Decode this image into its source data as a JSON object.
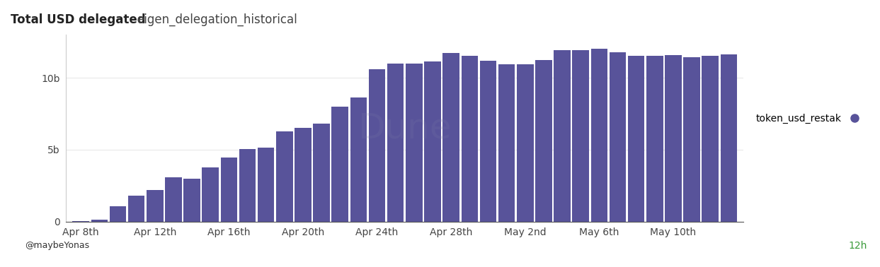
{
  "chart_data": {
    "type": "bar",
    "title": "Total USD delegated",
    "subtitle": "eigen_delegation_historical",
    "categories": [
      "Apr 8th",
      null,
      null,
      null,
      "Apr 12th",
      null,
      null,
      null,
      "Apr 16th",
      null,
      null,
      null,
      "Apr 20th",
      null,
      null,
      null,
      "Apr 24th",
      null,
      null,
      null,
      "Apr 28th",
      null,
      null,
      null,
      "May 2nd",
      null,
      null,
      null,
      "May 6th",
      null,
      null,
      null,
      "May 10th",
      null,
      null,
      null
    ],
    "series": [
      {
        "name": "token_usd_restak",
        "color": "#58539a",
        "values": [
          0.05,
          0.15,
          1.05,
          1.8,
          2.2,
          3.1,
          3.0,
          3.75,
          4.45,
          5.05,
          5.15,
          6.3,
          6.5,
          6.8,
          8.0,
          8.65,
          10.6,
          11.0,
          11.0,
          11.15,
          11.75,
          11.55,
          11.2,
          10.95,
          10.95,
          11.25,
          11.95,
          11.95,
          12.0,
          11.8,
          11.55,
          11.55,
          11.6,
          11.45,
          11.55,
          11.65
        ]
      }
    ],
    "ylim": [
      0,
      13
    ],
    "yticks": [
      0,
      {
        "value": 5,
        "label": "5b"
      },
      {
        "value": 10,
        "label": "10b"
      }
    ],
    "grid": true,
    "legend": "right",
    "watermark": "Dune",
    "author": "@maybeYonas",
    "refresh": "12h"
  }
}
